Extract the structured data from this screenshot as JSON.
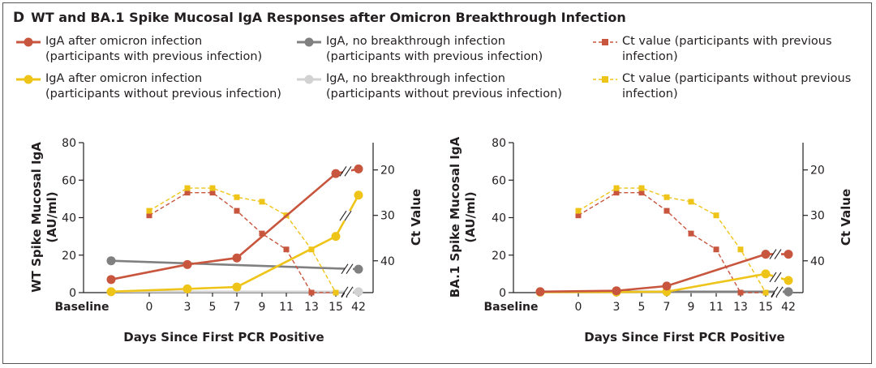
{
  "title": {
    "panel_letter": "D",
    "text": "WT and BA.1 Spike Mucosal IgA Responses after Omicron Breakthrough Infection"
  },
  "legend": [
    {
      "line1": "IgA after omicron infection",
      "line2": "(participants with previous infection)",
      "color": "#c8553d",
      "style": "solid-dot"
    },
    {
      "line1": "IgA, no breakthrough infection",
      "line2": "(participants with previous infection)",
      "color": "#808080",
      "style": "solid-dot"
    },
    {
      "line1": "Ct value (participants with previous",
      "line2": "infection)",
      "color": "#c8553d",
      "style": "dash-square"
    },
    {
      "line1": "IgA after omicron infection",
      "line2": "(participants without previous infection)",
      "color": "#efc419",
      "style": "solid-dot"
    },
    {
      "line1": "IgA, no breakthrough infection",
      "line2": "(participants without previous infection)",
      "color": "#d2d2d2",
      "style": "solid-dot"
    },
    {
      "line1": "Ct value (participants without previous",
      "line2": "infection)",
      "color": "#efc419",
      "style": "dash-square"
    }
  ],
  "chart_data": [
    {
      "type": "line",
      "ylabel_line1": "WT Spike Mucosal IgA",
      "ylabel_line2": "(AU/ml)",
      "y2label": "Ct Value",
      "xlabel": "Days Since First PCR Positive",
      "x_ticks": [
        "Baseline",
        "0",
        "3",
        "5",
        "7",
        "9",
        "11",
        "13",
        "15",
        "42"
      ],
      "ylim": [
        0,
        80
      ],
      "y_ticks": [
        0,
        20,
        40,
        60,
        80
      ],
      "y2_ticks": [
        20,
        30,
        40
      ],
      "y2_inverted": true,
      "series": [
        {
          "name": "IgA after omicron infection (participants with previous infection)",
          "axis": "left",
          "style": "solid-dot",
          "color": "#c8553d",
          "x": [
            "Baseline",
            "3",
            "7",
            "15",
            "42"
          ],
          "values": [
            7,
            15,
            18.5,
            63.5,
            66
          ]
        },
        {
          "name": "IgA, no breakthrough infection (participants with previous infection)",
          "axis": "left",
          "style": "solid-dot",
          "color": "#808080",
          "x": [
            "Baseline",
            "42"
          ],
          "values": [
            17,
            12.5
          ]
        },
        {
          "name": "IgA after omicron infection (participants without previous infection)",
          "axis": "left",
          "style": "solid-dot",
          "color": "#efc419",
          "x": [
            "Baseline",
            "3",
            "7",
            "15",
            "42"
          ],
          "values": [
            0.5,
            2,
            3,
            30,
            52
          ]
        },
        {
          "name": "IgA, no breakthrough infection (participants without previous infection)",
          "axis": "left",
          "style": "solid-dot",
          "color": "#d2d2d2",
          "x": [
            "Baseline",
            "42"
          ],
          "values": [
            0.5,
            0.5
          ]
        },
        {
          "name": "Ct value (participants with previous infection)",
          "axis": "right",
          "style": "dash-square",
          "color": "#c8553d",
          "x": [
            "0",
            "3",
            "5",
            "7",
            "9",
            "11",
            "13",
            "15"
          ],
          "values": [
            30,
            25,
            25,
            29,
            34,
            37.5,
            47,
            47
          ]
        },
        {
          "name": "Ct value (participants without previous infection)",
          "axis": "right",
          "style": "dash-square",
          "color": "#efc419",
          "x": [
            "0",
            "3",
            "5",
            "7",
            "9",
            "11",
            "13",
            "15"
          ],
          "values": [
            29,
            24,
            24,
            26,
            27,
            30,
            37.5,
            47
          ]
        }
      ]
    },
    {
      "type": "line",
      "ylabel_line1": "BA.1 Spike Mucosal IgA",
      "ylabel_line2": "(AU/ml)",
      "y2label": "Ct Value",
      "xlabel": "Days Since First PCR Positive",
      "x_ticks": [
        "Baseline",
        "0",
        "3",
        "5",
        "7",
        "9",
        "11",
        "13",
        "15",
        "42"
      ],
      "ylim": [
        0,
        80
      ],
      "y_ticks": [
        0,
        20,
        40,
        60,
        80
      ],
      "y2_ticks": [
        20,
        30,
        40
      ],
      "y2_inverted": true,
      "series": [
        {
          "name": "IgA after omicron infection (participants with previous infection)",
          "axis": "left",
          "style": "solid-dot",
          "color": "#c8553d",
          "x": [
            "Baseline",
            "3",
            "7",
            "15",
            "42"
          ],
          "values": [
            0.5,
            1,
            3.5,
            20.5,
            20.5
          ]
        },
        {
          "name": "IgA, no breakthrough infection (participants with previous infection)",
          "axis": "left",
          "style": "solid-dot",
          "color": "#808080",
          "x": [
            "Baseline",
            "42"
          ],
          "values": [
            0.5,
            0.5
          ]
        },
        {
          "name": "IgA after omicron infection (participants without previous infection)",
          "axis": "left",
          "style": "solid-dot",
          "color": "#efc419",
          "x": [
            "Baseline",
            "3",
            "7",
            "15",
            "42"
          ],
          "values": [
            0.3,
            0.3,
            0.5,
            10,
            6.5
          ]
        },
        {
          "name": "IgA, no breakthrough infection (participants without previous infection)",
          "axis": "left",
          "style": "solid-dot",
          "color": "#d2d2d2",
          "x": [
            "Baseline",
            "42"
          ],
          "values": [
            0.3,
            0.3
          ]
        },
        {
          "name": "Ct value (participants with previous infection)",
          "axis": "right",
          "style": "dash-square",
          "color": "#c8553d",
          "x": [
            "0",
            "3",
            "5",
            "7",
            "9",
            "11",
            "13",
            "15"
          ],
          "values": [
            30,
            25,
            25,
            29,
            34,
            37.5,
            47,
            47
          ]
        },
        {
          "name": "Ct value (participants without previous infection)",
          "axis": "right",
          "style": "dash-square",
          "color": "#efc419",
          "x": [
            "0",
            "3",
            "5",
            "7",
            "9",
            "11",
            "13",
            "15"
          ],
          "values": [
            29,
            24,
            24,
            26,
            27,
            30,
            37.5,
            47
          ]
        }
      ]
    }
  ]
}
